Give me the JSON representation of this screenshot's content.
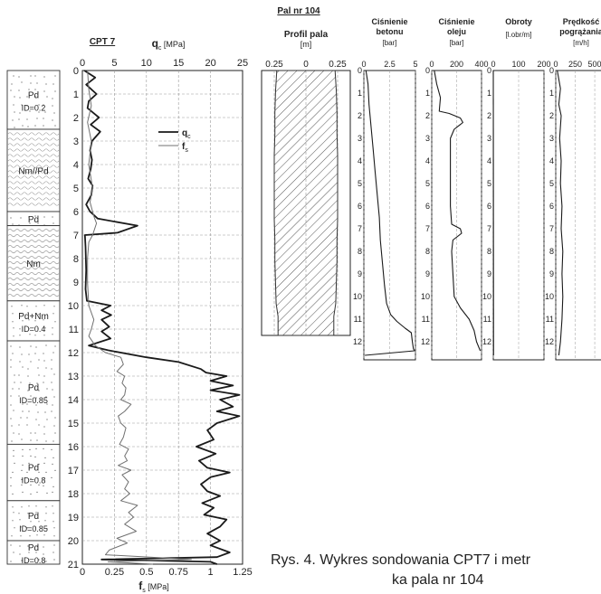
{
  "chart_data": [
    {
      "type": "line",
      "title": "CPT 7",
      "top_axis": {
        "label_symbol": "q",
        "label_sub": "c",
        "label_unit": "[MPa]",
        "range": [
          0,
          25
        ],
        "ticks": [
          "0",
          "5",
          "10",
          "15",
          "20",
          "25"
        ]
      },
      "bottom_axis": {
        "label_symbol": "f",
        "label_sub": "s",
        "label_unit": "[MPa]",
        "range": [
          0,
          1.25
        ],
        "ticks": [
          "0",
          "0.25",
          "0.5",
          "0.75",
          "1",
          "1.25"
        ]
      },
      "depth_axis": {
        "range": [
          0,
          21
        ],
        "ticks": [
          "0",
          "1",
          "2",
          "3",
          "4",
          "5",
          "6",
          "7",
          "8",
          "9",
          "10",
          "11",
          "12",
          "13",
          "14",
          "15",
          "16",
          "17",
          "18",
          "19",
          "20",
          "21"
        ],
        "inverted": true
      },
      "grid": true,
      "legend": {
        "placement": "top-right",
        "entries": [
          {
            "symbol": "q",
            "sub": "c"
          },
          {
            "symbol": "f",
            "sub": "s"
          }
        ]
      },
      "series": [
        {
          "name": "qc",
          "axis": "top",
          "color": "#1a1a1a",
          "width": 1.8,
          "points": [
            [
              0.3,
              0.0
            ],
            [
              2.0,
              0.3
            ],
            [
              0.6,
              0.6
            ],
            [
              2.2,
              1.0
            ],
            [
              1.0,
              1.3
            ],
            [
              0.8,
              1.6
            ],
            [
              2.6,
              2.0
            ],
            [
              1.3,
              2.3
            ],
            [
              2.8,
              2.6
            ],
            [
              1.5,
              3.0
            ],
            [
              1.2,
              3.4
            ],
            [
              1.5,
              3.8
            ],
            [
              1.3,
              4.2
            ],
            [
              0.9,
              4.6
            ],
            [
              1.6,
              4.9
            ],
            [
              1.4,
              5.3
            ],
            [
              0.6,
              5.7
            ],
            [
              1.2,
              6.0
            ],
            [
              2.4,
              6.3
            ],
            [
              8.6,
              6.6
            ],
            [
              5.5,
              6.9
            ],
            [
              0.4,
              7.0
            ],
            [
              0.5,
              7.5
            ],
            [
              0.6,
              8.5
            ],
            [
              0.5,
              9.3
            ],
            [
              0.7,
              9.8
            ],
            [
              4.4,
              10.0
            ],
            [
              3.0,
              10.2
            ],
            [
              4.5,
              10.4
            ],
            [
              3.0,
              10.6
            ],
            [
              4.2,
              10.9
            ],
            [
              3.0,
              11.1
            ],
            [
              4.4,
              11.4
            ],
            [
              1.0,
              11.7
            ],
            [
              4.0,
              11.9
            ],
            [
              10.0,
              12.2
            ],
            [
              15.0,
              12.4
            ],
            [
              18.5,
              12.7
            ],
            [
              19.3,
              12.85
            ],
            [
              22.5,
              13.0
            ],
            [
              20.0,
              13.2
            ],
            [
              23.5,
              13.4
            ],
            [
              20.0,
              13.6
            ],
            [
              24.5,
              13.8
            ],
            [
              21.5,
              14.0
            ],
            [
              23.5,
              14.3
            ],
            [
              21.0,
              14.5
            ],
            [
              24.5,
              14.7
            ],
            [
              21.0,
              15.0
            ],
            [
              19.5,
              15.3
            ],
            [
              20.5,
              15.7
            ],
            [
              17.8,
              16.0
            ],
            [
              20.8,
              16.3
            ],
            [
              18.2,
              16.6
            ],
            [
              19.5,
              16.9
            ],
            [
              23.0,
              17.1
            ],
            [
              20.0,
              17.3
            ],
            [
              18.5,
              17.6
            ],
            [
              19.5,
              17.9
            ],
            [
              21.5,
              18.1
            ],
            [
              18.7,
              18.4
            ],
            [
              20.5,
              18.6
            ],
            [
              19.0,
              18.9
            ],
            [
              22.5,
              19.1
            ],
            [
              21.5,
              19.4
            ],
            [
              19.5,
              19.7
            ],
            [
              21.5,
              20.0
            ],
            [
              20.0,
              20.2
            ],
            [
              23.0,
              20.5
            ],
            [
              21.0,
              20.7
            ],
            [
              3.0,
              20.8
            ],
            [
              20.0,
              20.9
            ],
            [
              21.0,
              21.0
            ]
          ]
        },
        {
          "name": "fs",
          "axis": "bottom",
          "color": "#707070",
          "width": 1.0,
          "points": [
            [
              0.04,
              0.0
            ],
            [
              0.05,
              0.8
            ],
            [
              0.07,
              1.5
            ],
            [
              0.04,
              2.2
            ],
            [
              0.07,
              3.0
            ],
            [
              0.05,
              4.0
            ],
            [
              0.08,
              5.0
            ],
            [
              0.06,
              5.6
            ],
            [
              0.09,
              6.2
            ],
            [
              0.11,
              6.5
            ],
            [
              0.08,
              7.0
            ],
            [
              0.05,
              7.3
            ],
            [
              0.04,
              8.0
            ],
            [
              0.04,
              9.0
            ],
            [
              0.05,
              10.0
            ],
            [
              0.09,
              10.6
            ],
            [
              0.07,
              11.0
            ],
            [
              0.05,
              11.3
            ],
            [
              0.1,
              11.7
            ],
            [
              0.18,
              12.0
            ],
            [
              0.3,
              12.2
            ],
            [
              0.32,
              12.5
            ],
            [
              0.27,
              12.8
            ],
            [
              0.33,
              13.0
            ],
            [
              0.31,
              13.3
            ],
            [
              0.34,
              13.5
            ],
            [
              0.33,
              13.8
            ],
            [
              0.3,
              14.0
            ],
            [
              0.38,
              14.2
            ],
            [
              0.33,
              14.5
            ],
            [
              0.28,
              14.7
            ],
            [
              0.3,
              15.0
            ],
            [
              0.34,
              15.2
            ],
            [
              0.32,
              15.6
            ],
            [
              0.29,
              15.9
            ],
            [
              0.36,
              16.1
            ],
            [
              0.33,
              16.4
            ],
            [
              0.35,
              16.6
            ],
            [
              0.28,
              16.8
            ],
            [
              0.38,
              17.0
            ],
            [
              0.31,
              17.2
            ],
            [
              0.36,
              17.5
            ],
            [
              0.33,
              17.8
            ],
            [
              0.37,
              18.0
            ],
            [
              0.3,
              18.3
            ],
            [
              0.43,
              18.5
            ],
            [
              0.36,
              18.8
            ],
            [
              0.4,
              19.0
            ],
            [
              0.33,
              19.3
            ],
            [
              0.42,
              19.6
            ],
            [
              0.27,
              19.9
            ],
            [
              0.35,
              20.1
            ],
            [
              0.21,
              20.4
            ],
            [
              0.18,
              20.6
            ],
            [
              0.85,
              20.8
            ],
            [
              0.2,
              20.9
            ],
            [
              0.55,
              21.0
            ]
          ]
        }
      ]
    },
    {
      "type": "area",
      "title": "Profil pala",
      "xlabel": "[m]",
      "x_ticks": [
        "0.25",
        "0",
        "0.25"
      ],
      "x_range": [
        -0.35,
        0.35
      ],
      "y_range": [
        0,
        12.5
      ],
      "profile_radius": [
        [
          0.0,
          0.23
        ],
        [
          1.0,
          0.24
        ],
        [
          2.0,
          0.245
        ],
        [
          3.0,
          0.245
        ],
        [
          4.0,
          0.25
        ],
        [
          5.0,
          0.25
        ],
        [
          6.0,
          0.25
        ],
        [
          7.0,
          0.25
        ],
        [
          8.0,
          0.245
        ],
        [
          9.0,
          0.245
        ],
        [
          10.0,
          0.24
        ],
        [
          11.0,
          0.235
        ],
        [
          11.6,
          0.22
        ],
        [
          12.0,
          0.22
        ],
        [
          12.5,
          0.22
        ]
      ]
    },
    {
      "type": "line",
      "title": "Ciśnienie betonu",
      "xlabel": "[bar]",
      "x_ticks": [
        "0",
        "2.5",
        "5"
      ],
      "x_range": [
        0,
        5
      ],
      "y_ticks": [
        "0",
        "1",
        "2",
        "3",
        "4",
        "5",
        "6",
        "7",
        "8",
        "9",
        "10",
        "11",
        "12"
      ],
      "y_range": [
        0,
        12.8
      ],
      "series": [
        {
          "points": [
            [
              0.2,
              0.0
            ],
            [
              0.4,
              0.6
            ],
            [
              0.5,
              1.5
            ],
            [
              0.7,
              2.5
            ],
            [
              0.9,
              3.5
            ],
            [
              1.1,
              4.5
            ],
            [
              1.3,
              5.5
            ],
            [
              1.5,
              6.5
            ],
            [
              1.6,
              7.5
            ],
            [
              1.8,
              8.5
            ],
            [
              2.0,
              9.5
            ],
            [
              2.2,
              10.3
            ],
            [
              2.6,
              10.8
            ],
            [
              3.2,
              11.1
            ],
            [
              4.0,
              11.4
            ],
            [
              4.6,
              11.6
            ],
            [
              4.7,
              12.0
            ],
            [
              4.8,
              12.3
            ],
            [
              4.9,
              12.4
            ],
            [
              0.1,
              12.6
            ]
          ]
        }
      ]
    },
    {
      "type": "line",
      "title": "Ciśnienie oleju",
      "xlabel": "[bar]",
      "x_ticks": [
        "0",
        "200",
        "400"
      ],
      "x_range": [
        0,
        400
      ],
      "y_ticks": [
        "0",
        "1",
        "2",
        "3",
        "4",
        "5",
        "6",
        "7",
        "8",
        "9",
        "10",
        "11",
        "12"
      ],
      "y_range": [
        0,
        12.8
      ],
      "series": [
        {
          "points": [
            [
              20,
              0.0
            ],
            [
              40,
              0.6
            ],
            [
              70,
              1.2
            ],
            [
              60,
              1.8
            ],
            [
              140,
              1.9
            ],
            [
              230,
              2.1
            ],
            [
              250,
              2.3
            ],
            [
              180,
              2.6
            ],
            [
              150,
              3.0
            ],
            [
              150,
              4.0
            ],
            [
              150,
              5.0
            ],
            [
              150,
              6.0
            ],
            [
              160,
              6.8
            ],
            [
              230,
              7.0
            ],
            [
              240,
              7.2
            ],
            [
              170,
              7.5
            ],
            [
              160,
              8.0
            ],
            [
              170,
              9.0
            ],
            [
              180,
              10.0
            ],
            [
              230,
              10.5
            ],
            [
              300,
              11.0
            ],
            [
              340,
              11.5
            ],
            [
              360,
              12.0
            ],
            [
              390,
              12.4
            ]
          ]
        }
      ]
    },
    {
      "type": "line",
      "title": "Obroty",
      "xlabel": "[l.obr/m]",
      "x_ticks": [
        "0",
        "100",
        "200"
      ],
      "x_range": [
        0,
        200
      ],
      "y_ticks": [
        "0",
        "1",
        "2",
        "3",
        "4",
        "5",
        "6",
        "7",
        "8",
        "9",
        "10",
        "11",
        "12"
      ],
      "y_range": [
        0,
        12.8
      ],
      "series": [
        {
          "points": [
            [
              0,
              0.0
            ],
            [
              1,
              12.6
            ]
          ]
        }
      ]
    },
    {
      "type": "line",
      "title": "Prędkość pogrążania",
      "xlabel": "[m/h]",
      "x_ticks": [
        "0",
        "250",
        "500"
      ],
      "x_range": [
        0,
        650
      ],
      "y_ticks": [
        "0",
        "1",
        "2",
        "3",
        "4",
        "5",
        "6",
        "7",
        "8",
        "9",
        "10",
        "11",
        "12"
      ],
      "y_range": [
        0,
        12.8
      ],
      "series": [
        {
          "points": [
            [
              20,
              0.0
            ],
            [
              60,
              0.8
            ],
            [
              40,
              1.5
            ],
            [
              70,
              2.0
            ],
            [
              50,
              3.0
            ],
            [
              70,
              4.0
            ],
            [
              60,
              5.0
            ],
            [
              80,
              6.0
            ],
            [
              70,
              7.0
            ],
            [
              90,
              8.0
            ],
            [
              80,
              9.0
            ],
            [
              90,
              10.0
            ],
            [
              80,
              11.0
            ],
            [
              60,
              12.0
            ],
            [
              40,
              12.6
            ]
          ]
        }
      ]
    }
  ],
  "pile_label": "Pal nr 104",
  "soil_layers": [
    {
      "top": 0.0,
      "bottom": 2.5,
      "label": "Pd",
      "sublabel": "ID=0.2",
      "pattern": "sand"
    },
    {
      "top": 2.5,
      "bottom": 6.0,
      "label": "Nm//Pd",
      "sublabel": "",
      "pattern": "wave"
    },
    {
      "top": 6.0,
      "bottom": 6.6,
      "label": "Pd",
      "sublabel": "",
      "pattern": "sand"
    },
    {
      "top": 6.6,
      "bottom": 9.8,
      "label": "Nm",
      "sublabel": "",
      "pattern": "wave"
    },
    {
      "top": 9.8,
      "bottom": 11.5,
      "label": "Pd+Nm",
      "sublabel": "ID=0.4",
      "pattern": "sand"
    },
    {
      "top": 11.5,
      "bottom": 15.9,
      "label": "Pd",
      "sublabel": "ID=0.85",
      "pattern": "sand"
    },
    {
      "top": 15.9,
      "bottom": 18.3,
      "label": "Pd",
      "sublabel": "ID=0.8",
      "pattern": "sand"
    },
    {
      "top": 18.3,
      "bottom": 20.0,
      "label": "Pd",
      "sublabel": "ID=0.85",
      "pattern": "sand"
    },
    {
      "top": 20.0,
      "bottom": 21.0,
      "label": "Pd",
      "sublabel": "ID=0.8",
      "pattern": "sand"
    }
  ],
  "caption": {
    "line1": "Rys. 4. Wykres sondowania CPT7 i metr",
    "line2": "ka pala nr 104"
  }
}
